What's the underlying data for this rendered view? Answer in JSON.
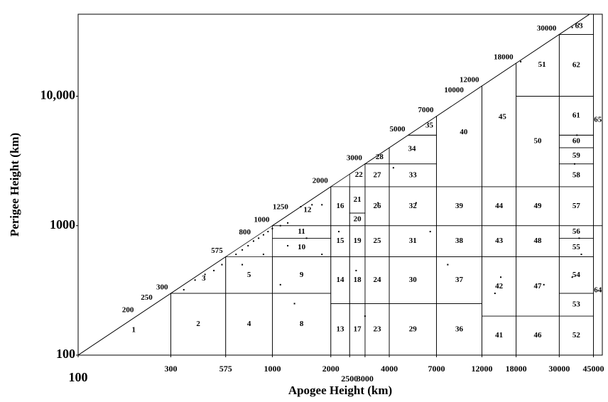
{
  "chart_data": {
    "type": "cells",
    "x_label": "Apogee Height (km)",
    "y_label": "Perigee Height (km)",
    "log_x": true,
    "log_y": true,
    "xlim": [
      100,
      50000
    ],
    "ylim": [
      100,
      43000
    ],
    "xticks": [
      100,
      300,
      575,
      1000,
      2000,
      2500,
      3000,
      4000,
      7000,
      12000,
      18000,
      30000,
      45000
    ],
    "yticks": [
      100,
      1000,
      {
        "value": 10000,
        "label": "10,000"
      }
    ],
    "diagonal_labels": [
      200,
      250,
      300,
      575,
      800,
      1000,
      1250,
      2000,
      3000,
      5000,
      7000,
      10000,
      12000,
      18000,
      30000
    ],
    "cells": [
      {
        "label": "1",
        "apogee": [
          100,
          300
        ],
        "perigee": [
          100,
          300
        ]
      },
      {
        "label": "2",
        "apogee": [
          300,
          575
        ],
        "perigee": [
          100,
          300
        ]
      },
      {
        "label": "3",
        "apogee": [
          300,
          575
        ],
        "perigee": [
          300,
          575
        ]
      },
      {
        "label": "4",
        "apogee": [
          575,
          1000
        ],
        "perigee": [
          100,
          300
        ]
      },
      {
        "label": "5",
        "apogee": [
          575,
          1000
        ],
        "perigee": [
          300,
          575
        ]
      },
      {
        "label": "8",
        "apogee": [
          1000,
          2000
        ],
        "perigee": [
          100,
          300
        ]
      },
      {
        "label": "9",
        "apogee": [
          1000,
          2000
        ],
        "perigee": [
          300,
          575
        ]
      },
      {
        "label": "10",
        "apogee": [
          1000,
          2000
        ],
        "perigee": [
          575,
          800
        ]
      },
      {
        "label": "11",
        "apogee": [
          1000,
          2000
        ],
        "perigee": [
          800,
          1000
        ]
      },
      {
        "label": "12",
        "apogee": [
          1000,
          2000
        ],
        "perigee": [
          1000,
          2000
        ]
      },
      {
        "label": "13",
        "apogee": [
          2000,
          2500
        ],
        "perigee": [
          100,
          250
        ]
      },
      {
        "label": "14",
        "apogee": [
          2000,
          2500
        ],
        "perigee": [
          250,
          575
        ]
      },
      {
        "label": "15",
        "apogee": [
          2000,
          2500
        ],
        "perigee": [
          575,
          1000
        ]
      },
      {
        "label": "16",
        "apogee": [
          2000,
          2500
        ],
        "perigee": [
          1000,
          2000
        ]
      },
      {
        "label": "17",
        "apogee": [
          2500,
          3000
        ],
        "perigee": [
          100,
          250
        ]
      },
      {
        "label": "18",
        "apogee": [
          2500,
          3000
        ],
        "perigee": [
          250,
          575
        ]
      },
      {
        "label": "19",
        "apogee": [
          2500,
          3000
        ],
        "perigee": [
          575,
          1000
        ]
      },
      {
        "label": "20",
        "apogee": [
          2500,
          3000
        ],
        "perigee": [
          1000,
          1250
        ]
      },
      {
        "label": "21",
        "apogee": [
          2500,
          3000
        ],
        "perigee": [
          1250,
          2000
        ]
      },
      {
        "label": "22",
        "apogee": [
          2500,
          3000
        ],
        "perigee": [
          2000,
          3000
        ]
      },
      {
        "label": "23",
        "apogee": [
          3000,
          4000
        ],
        "perigee": [
          100,
          250
        ]
      },
      {
        "label": "24",
        "apogee": [
          3000,
          4000
        ],
        "perigee": [
          250,
          575
        ]
      },
      {
        "label": "25",
        "apogee": [
          3000,
          4000
        ],
        "perigee": [
          575,
          1000
        ]
      },
      {
        "label": "26",
        "apogee": [
          3000,
          4000
        ],
        "perigee": [
          1000,
          2000
        ]
      },
      {
        "label": "27",
        "apogee": [
          3000,
          4000
        ],
        "perigee": [
          2000,
          3000
        ]
      },
      {
        "label": "28",
        "apogee": [
          3000,
          4000
        ],
        "perigee": [
          3000,
          4000
        ]
      },
      {
        "label": "29",
        "apogee": [
          4000,
          7000
        ],
        "perigee": [
          100,
          250
        ]
      },
      {
        "label": "30",
        "apogee": [
          4000,
          7000
        ],
        "perigee": [
          250,
          575
        ]
      },
      {
        "label": "31",
        "apogee": [
          4000,
          7000
        ],
        "perigee": [
          575,
          1000
        ]
      },
      {
        "label": "32",
        "apogee": [
          4000,
          7000
        ],
        "perigee": [
          1000,
          2000
        ]
      },
      {
        "label": "33",
        "apogee": [
          4000,
          7000
        ],
        "perigee": [
          2000,
          3000
        ]
      },
      {
        "label": "34",
        "apogee": [
          4000,
          7000
        ],
        "perigee": [
          3000,
          5000
        ]
      },
      {
        "label": "35",
        "apogee": [
          4000,
          7000
        ],
        "perigee": [
          5000,
          7000
        ]
      },
      {
        "label": "36",
        "apogee": [
          7000,
          12000
        ],
        "perigee": [
          100,
          250
        ]
      },
      {
        "label": "37",
        "apogee": [
          7000,
          12000
        ],
        "perigee": [
          250,
          575
        ]
      },
      {
        "label": "38",
        "apogee": [
          7000,
          12000
        ],
        "perigee": [
          575,
          1000
        ]
      },
      {
        "label": "39",
        "apogee": [
          7000,
          12000
        ],
        "perigee": [
          1000,
          2000
        ]
      },
      {
        "label": "40",
        "apogee": [
          7000,
          12000
        ],
        "perigee": [
          2000,
          12000
        ]
      },
      {
        "label": "41",
        "apogee": [
          12000,
          18000
        ],
        "perigee": [
          100,
          200
        ]
      },
      {
        "label": "42",
        "apogee": [
          12000,
          18000
        ],
        "perigee": [
          200,
          575
        ]
      },
      {
        "label": "43",
        "apogee": [
          12000,
          18000
        ],
        "perigee": [
          575,
          1000
        ]
      },
      {
        "label": "44",
        "apogee": [
          12000,
          18000
        ],
        "perigee": [
          1000,
          2000
        ]
      },
      {
        "label": "45",
        "apogee": [
          12000,
          18000
        ],
        "perigee": [
          2000,
          18000
        ]
      },
      {
        "label": "46",
        "apogee": [
          18000,
          30000
        ],
        "perigee": [
          100,
          200
        ]
      },
      {
        "label": "47",
        "apogee": [
          18000,
          30000
        ],
        "perigee": [
          200,
          575
        ]
      },
      {
        "label": "48",
        "apogee": [
          18000,
          30000
        ],
        "perigee": [
          575,
          1000
        ]
      },
      {
        "label": "49",
        "apogee": [
          18000,
          30000
        ],
        "perigee": [
          1000,
          2000
        ]
      },
      {
        "label": "50",
        "apogee": [
          18000,
          30000
        ],
        "perigee": [
          2000,
          10000
        ]
      },
      {
        "label": "51",
        "apogee": [
          18000,
          30000
        ],
        "perigee": [
          10000,
          30000
        ]
      },
      {
        "label": "52",
        "apogee": [
          30000,
          45000
        ],
        "perigee": [
          100,
          200
        ]
      },
      {
        "label": "53",
        "apogee": [
          30000,
          45000
        ],
        "perigee": [
          200,
          300
        ]
      },
      {
        "label": "54",
        "apogee": [
          30000,
          45000
        ],
        "perigee": [
          300,
          575
        ]
      },
      {
        "label": "55",
        "apogee": [
          30000,
          45000
        ],
        "perigee": [
          575,
          800
        ]
      },
      {
        "label": "56",
        "apogee": [
          30000,
          45000
        ],
        "perigee": [
          800,
          1000
        ]
      },
      {
        "label": "57",
        "apogee": [
          30000,
          45000
        ],
        "perigee": [
          1000,
          2000
        ]
      },
      {
        "label": "58",
        "apogee": [
          30000,
          45000
        ],
        "perigee": [
          2000,
          3000
        ]
      },
      {
        "label": "59",
        "apogee": [
          30000,
          45000
        ],
        "perigee": [
          3000,
          4000
        ]
      },
      {
        "label": "60",
        "apogee": [
          30000,
          45000
        ],
        "perigee": [
          4000,
          5000
        ]
      },
      {
        "label": "61",
        "apogee": [
          30000,
          45000
        ],
        "perigee": [
          5000,
          10000
        ]
      },
      {
        "label": "62",
        "apogee": [
          30000,
          45000
        ],
        "perigee": [
          10000,
          30000
        ]
      },
      {
        "label": "63",
        "apogee": [
          30000,
          45000
        ],
        "perigee": [
          30000,
          43000
        ]
      },
      {
        "label": "64",
        "apogee": [
          45000,
          50000
        ],
        "perigee": [
          100,
          1000
        ]
      },
      {
        "label": "65",
        "apogee": [
          45000,
          50000
        ],
        "perigee": [
          1000,
          43000
        ]
      }
    ],
    "objects": {
      "color": "#000000",
      "x": [
        650,
        700,
        750,
        800,
        850,
        900,
        950,
        1000,
        1100,
        1200,
        1400,
        1600,
        1800,
        550,
        500,
        450,
        400,
        350,
        700,
        900,
        1200,
        1500,
        1800,
        2200,
        3500,
        4200,
        5500,
        6500,
        19000,
        35000,
        38000,
        36000,
        37000,
        38000,
        39000,
        35000,
        25000,
        15000,
        14000,
        8000,
        3000,
        2700,
        1100,
        1300
      ],
      "y": [
        600,
        650,
        700,
        760,
        800,
        850,
        900,
        950,
        1000,
        1050,
        1400,
        1450,
        1450,
        500,
        450,
        420,
        380,
        320,
        500,
        600,
        700,
        800,
        600,
        900,
        1500,
        2800,
        1500,
        900,
        18500,
        34000,
        36000,
        3000,
        5000,
        800,
        600,
        400,
        350,
        400,
        300,
        500,
        200,
        450,
        350,
        250
      ]
    }
  }
}
